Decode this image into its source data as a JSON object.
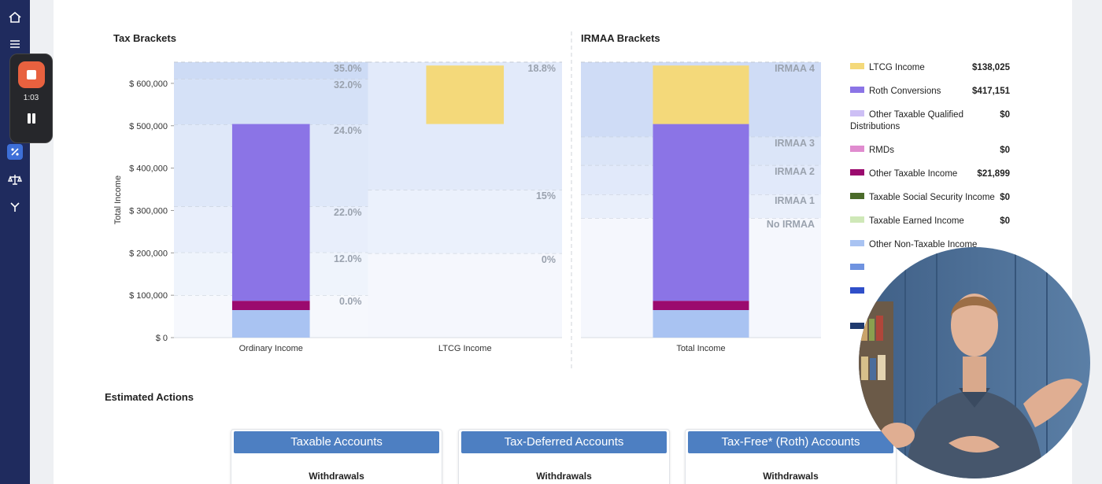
{
  "recorder": {
    "time": "1:03"
  },
  "chart_data": [
    {
      "type": "bar",
      "title": "Tax Brackets",
      "y_label": "Total Income",
      "categories": [
        "Ordinary Income",
        "LTCG Income"
      ],
      "stack": "cumulative",
      "series": [
        {
          "color": "#a9c3f2",
          "values": [
            65000,
            null
          ]
        },
        {
          "color": "#9b0a6e",
          "values": [
            21899,
            null
          ]
        },
        {
          "color": "#8b74e6",
          "values": [
            417151,
            null
          ]
        },
        {
          "color": "#f4d97a",
          "values": [
            null,
            138025
          ]
        }
      ],
      "ylim": [
        0,
        650000
      ],
      "yticks": [
        {
          "value": 0,
          "label": "$ 0"
        },
        {
          "value": 100000,
          "label": "$ 100,000"
        },
        {
          "value": 200000,
          "label": "$ 200,000"
        },
        {
          "value": 300000,
          "label": "$ 300,000"
        },
        {
          "value": 400000,
          "label": "$ 400,000"
        },
        {
          "value": 500000,
          "label": "$ 500,000"
        },
        {
          "value": 600000,
          "label": "$ 600,000"
        }
      ],
      "brackets": [
        [
          {
            "label": "0.0%",
            "top": 100000,
            "color": "#f6f8fd"
          },
          {
            "label": "12.0%",
            "top": 201000,
            "color": "#eff4fc"
          },
          {
            "label": "22.0%",
            "top": 310000,
            "color": "#e8eefb"
          },
          {
            "label": "24.0%",
            "top": 503000,
            "color": "#dfe8f9"
          },
          {
            "label": "32.0%",
            "top": 611000,
            "color": "#d5e1f7"
          },
          {
            "label": "35.0%",
            "top": 650000,
            "color": "#cddbf5"
          }
        ],
        [
          {
            "label": "0%",
            "top": 199000,
            "color": "#f5f7fd"
          },
          {
            "label": "15%",
            "top": 349000,
            "color": "#ebf1fc"
          },
          {
            "label": "18.8%",
            "top": 650000,
            "color": "#e2eafa"
          }
        ]
      ]
    },
    {
      "type": "bar",
      "title": "IRMAA Brackets",
      "categories": [
        "Total Income"
      ],
      "stack": "normal",
      "series": [
        {
          "color": "#a9c3f2",
          "values": [
            65000
          ]
        },
        {
          "color": "#9b0a6e",
          "values": [
            21899
          ]
        },
        {
          "color": "#8b74e6",
          "values": [
            417151
          ]
        },
        {
          "color": "#f4d97a",
          "values": [
            138025
          ]
        }
      ],
      "ylim": [
        0,
        650000
      ],
      "brackets": [
        [
          {
            "label": "No IRMAA",
            "top": 282000,
            "color": "#f5f7fd"
          },
          {
            "label": "IRMAA 1",
            "top": 338000,
            "color": "#e9effb"
          },
          {
            "label": "IRMAA 2",
            "top": 407000,
            "color": "#e1e9fa"
          },
          {
            "label": "IRMAA 3",
            "top": 474000,
            "color": "#dbe5f8"
          },
          {
            "label": "IRMAA 4",
            "top": 650000,
            "color": "#cfdcf6"
          }
        ]
      ]
    }
  ],
  "legend": [
    {
      "name": "LTCG Income",
      "value": "$138,025",
      "color": "#f4d97a"
    },
    {
      "name": "Roth Conversions",
      "value": "$417,151",
      "color": "#8b74e6"
    },
    {
      "name": "Other Taxable Qualified Distributions",
      "value": "$0",
      "color": "#cdbff5"
    },
    {
      "name": "RMDs",
      "value": "$0",
      "color": "#e08ccf"
    },
    {
      "name": "Other Taxable Income",
      "value": "$21,899",
      "color": "#9b0a6e"
    },
    {
      "name": "Taxable Social Security Income",
      "value": "$0",
      "color": "#4b6b2a"
    },
    {
      "name": "Taxable Earned Income",
      "value": "$0",
      "color": "#cfe8b8"
    },
    {
      "name": "Other Non-Taxable Income",
      "color": "#a9c3f2"
    },
    {
      "color": "#6f93e0"
    },
    {
      "color": "#2f4fc9"
    },
    {
      "color": "#1f3a6e"
    }
  ],
  "actions": {
    "title": "Estimated Actions",
    "cards": [
      {
        "title": "Taxable Accounts",
        "row": "Withdrawals"
      },
      {
        "title": "Tax-Deferred Accounts",
        "row": "Withdrawals"
      },
      {
        "title": "Tax-Free* (Roth) Accounts",
        "row": "Withdrawals"
      }
    ]
  }
}
